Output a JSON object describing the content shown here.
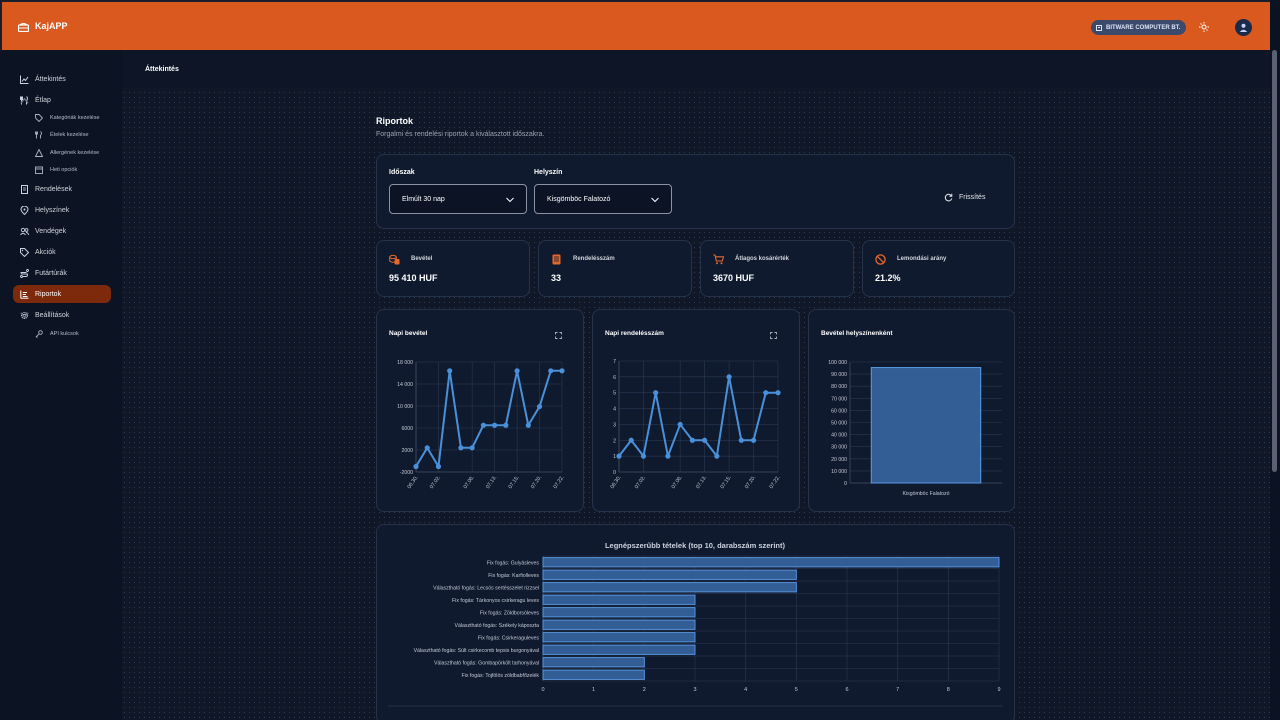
{
  "app": {
    "title": "KajAPP",
    "company": "BITWARE COMPUTER BT."
  },
  "breadcrumb": "Áttekintés",
  "sidebar": {
    "items": [
      {
        "label": "Áttekintés",
        "icon": "chart-icon"
      },
      {
        "label": "Étlap",
        "icon": "utensils-icon"
      },
      {
        "label": "Kategóriák kezelése",
        "icon": "tag-icon"
      },
      {
        "label": "Ételek kezelése",
        "icon": "utensils-icon"
      },
      {
        "label": "Allergének kezelése",
        "icon": "warning-icon"
      },
      {
        "label": "Heti opciók",
        "icon": "calendar-icon"
      },
      {
        "label": "Rendelések",
        "icon": "receipt-icon"
      },
      {
        "label": "Helyszínek",
        "icon": "map-pin-icon"
      },
      {
        "label": "Vendégek",
        "icon": "users-icon"
      },
      {
        "label": "Akciók",
        "icon": "tag-icon"
      },
      {
        "label": "Futártúrák",
        "icon": "route-icon"
      },
      {
        "label": "Riportok",
        "icon": "report-icon"
      },
      {
        "label": "Beállítások",
        "icon": "gear-icon"
      },
      {
        "label": "API kulcsok",
        "icon": "key-icon"
      }
    ]
  },
  "page": {
    "title": "Riportok",
    "subtitle": "Forgalmi és rendelési riportok a kiválasztott időszakra."
  },
  "filters": {
    "period_label": "Időszak",
    "period_value": "Elmúlt 30 nap",
    "location_label": "Helyszín",
    "location_value": "Kisgömböc Falatozó",
    "refresh_label": "Frissítés"
  },
  "kpis": [
    {
      "label": "Bevétel",
      "value": "95 410 HUF",
      "icon": "coins-icon"
    },
    {
      "label": "Rendelésszám",
      "value": "33",
      "icon": "receipt-icon"
    },
    {
      "label": "Átlagos kosárérték",
      "value": "3670 HUF",
      "icon": "cart-icon"
    },
    {
      "label": "Lemondási arány",
      "value": "21.2%",
      "icon": "ban-icon"
    }
  ],
  "colors": {
    "accent": "#d9591f",
    "series": "#4a90d9",
    "active_nav": "#7c2a0b"
  },
  "chart_titles": {
    "daily_revenue": "Napi bevétel",
    "daily_orders": "Napi rendelésszám",
    "by_location": "Bevétel helyszínenként"
  },
  "chart_data": [
    {
      "type": "line",
      "title": "Napi bevétel",
      "x": [
        "06.30",
        "07.01",
        "07.02",
        "07.03",
        "07.05",
        "07.06",
        "07.12",
        "07.13",
        "07.14",
        "07.15",
        "07.19",
        "07.20",
        "07.21",
        "07.22"
      ],
      "xticks": [
        "06.30.",
        "07.02.",
        "07.06.",
        "07.13.",
        "07.15.",
        "07.20.",
        "07.22."
      ],
      "values": [
        -1000,
        2400,
        -1000,
        16400,
        2400,
        2400,
        6500,
        6500,
        6500,
        16400,
        6500,
        9900,
        16400,
        16400
      ],
      "ylim": [
        -2000,
        18000
      ],
      "yticks": [
        -2000,
        2000,
        6000,
        10000,
        14000,
        18000
      ],
      "ytick_labels": [
        "-2000",
        "2000",
        "6000",
        "10 000",
        "14 000",
        "18 000"
      ],
      "grid": true
    },
    {
      "type": "line",
      "title": "Napi rendelésszám",
      "x": [
        "06.30",
        "07.01",
        "07.02",
        "07.03",
        "07.05",
        "07.06",
        "07.12",
        "07.13",
        "07.14",
        "07.15",
        "07.19",
        "07.20",
        "07.21",
        "07.22"
      ],
      "xticks": [
        "06.30.",
        "07.02.",
        "07.06.",
        "07.13.",
        "07.15.",
        "07.20.",
        "07.22."
      ],
      "values": [
        1,
        2,
        1,
        5,
        1,
        3,
        2,
        2,
        1,
        6,
        2,
        2,
        5,
        5
      ],
      "ylim": [
        0,
        7
      ],
      "yticks": [
        0,
        1,
        2,
        3,
        4,
        5,
        6,
        7
      ],
      "ytick_labels": [
        "0",
        "1",
        "2",
        "3",
        "4",
        "5",
        "6",
        "7"
      ],
      "grid": true
    },
    {
      "type": "bar",
      "title": "Bevétel helyszínenként",
      "categories": [
        "Kisgömböc Falatozó"
      ],
      "values": [
        95410
      ],
      "ylim": [
        0,
        100000
      ],
      "yticks": [
        0,
        10000,
        20000,
        30000,
        40000,
        50000,
        60000,
        70000,
        80000,
        90000,
        100000
      ],
      "ytick_labels": [
        "0",
        "10 000",
        "20 000",
        "30 000",
        "40 000",
        "50 000",
        "60 000",
        "70 000",
        "80 000",
        "90 000",
        "100 000"
      ],
      "grid": true
    },
    {
      "type": "bar",
      "orientation": "horizontal",
      "title": "Legnépszerűbb tételek (top 10, darabszám szerint)",
      "categories": [
        "Fix fogás: Gulyásleves",
        "Fix fogás: Karfiolleves",
        "Választható fogás: Lecsós sertésszelet rizzsel",
        "Fix fogás: Tárkonyos csirkeragu leves",
        "Fix fogás: Zöldborsóleves",
        "Választható fogás: Székely káposzta",
        "Fix fogás: Csirkeraguleves",
        "Választható fogás: Sült csirkecomb tepsis burgonyával",
        "Választható fogás: Gombapörkölt tarhonyával",
        "Fix fogás: Tojfölös zöldbabfőzelék"
      ],
      "values": [
        9,
        5,
        5,
        3,
        3,
        3,
        3,
        3,
        2,
        2
      ],
      "xlim": [
        0,
        9
      ],
      "xticks": [
        "0",
        "1",
        "2",
        "3",
        "4",
        "5",
        "6",
        "7",
        "8",
        "9"
      ],
      "grid": true
    }
  ]
}
